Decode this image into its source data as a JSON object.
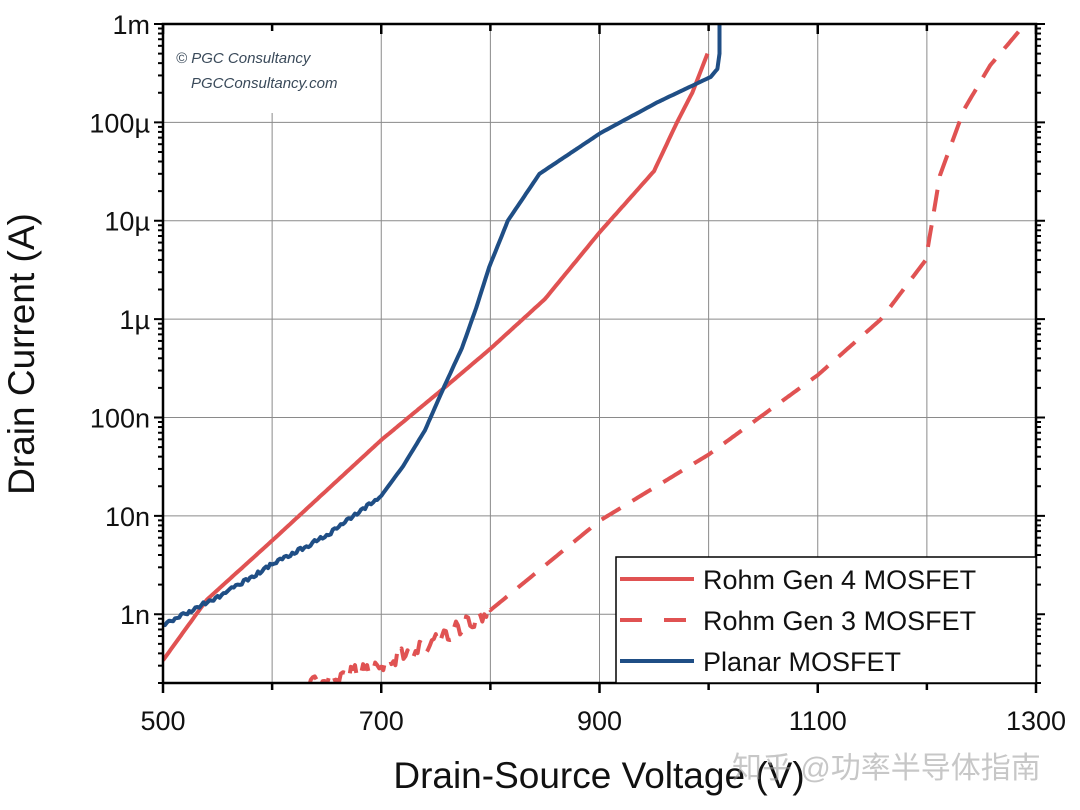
{
  "chart_data": {
    "type": "line",
    "xlabel": "Drain-Source Voltage (V)",
    "ylabel": "Drain Current (A)",
    "xlim": [
      500,
      1300
    ],
    "ylim": [
      2e-10,
      0.001
    ],
    "yscale": "log",
    "grid": true,
    "legend_position": "bottom-right",
    "x_ticks": [
      500,
      700,
      900,
      1100,
      1300
    ],
    "x_tick_labels": [
      "500",
      "700",
      "900",
      "1100",
      "1300"
    ],
    "y_ticks": [
      0.001,
      0.0001,
      1e-05,
      1e-06,
      1e-07,
      1e-08,
      1e-09
    ],
    "y_tick_labels": [
      "1m",
      "100µ",
      "10µ",
      "1µ",
      "100n",
      "10n",
      "1n"
    ],
    "series": [
      {
        "name": "Rohm Gen 4 MOSFET",
        "color": "#e05252",
        "style": "solid",
        "points": [
          [
            500,
            3.4e-10
          ],
          [
            540,
            1.4e-09
          ],
          [
            600,
            5.6e-09
          ],
          [
            700,
            5.9e-08
          ],
          [
            760,
            2.1e-07
          ],
          [
            800,
            5e-07
          ],
          [
            850,
            1.6e-06
          ],
          [
            900,
            7.6e-06
          ],
          [
            950,
            3.2e-05
          ],
          [
            971,
            0.0001
          ],
          [
            985,
            0.0002
          ],
          [
            999,
            0.0005
          ]
        ]
      },
      {
        "name": "Rohm Gen 3 MOSFET",
        "color": "#e05252",
        "style": "dashed",
        "points": [
          [
            630,
            2e-10
          ],
          [
            650,
            2.2e-10
          ],
          [
            700,
            3e-10
          ],
          [
            750,
            5.4e-10
          ],
          [
            800,
            1.1e-09
          ],
          [
            900,
            8.9e-09
          ],
          [
            1000,
            4.2e-08
          ],
          [
            1100,
            2.7e-07
          ],
          [
            1158,
            1e-06
          ],
          [
            1199,
            4e-06
          ],
          [
            1212,
            2.9e-05
          ],
          [
            1234,
            0.000135
          ],
          [
            1258,
            0.00038
          ],
          [
            1290,
            0.001
          ]
        ]
      },
      {
        "name": "Planar MOSFET",
        "color": "#1f4e85",
        "style": "solid",
        "points": [
          [
            500,
            7.8e-10
          ],
          [
            550,
            1.5e-09
          ],
          [
            600,
            3.2e-09
          ],
          [
            650,
            6.3e-09
          ],
          [
            700,
            1.6e-08
          ],
          [
            720,
            3.2e-08
          ],
          [
            740,
            7.4e-08
          ],
          [
            758,
            2.1e-07
          ],
          [
            774,
            5.1e-07
          ],
          [
            787,
            1.3e-06
          ],
          [
            799,
            3.4e-06
          ],
          [
            816,
            1e-05
          ],
          [
            845,
            3e-05
          ],
          [
            901,
            7.8e-05
          ],
          [
            953,
            0.00016
          ],
          [
            1002,
            0.00029
          ],
          [
            1008,
            0.00035
          ],
          [
            1010,
            0.0005
          ],
          [
            1010,
            0.001
          ]
        ]
      }
    ]
  },
  "watermark": {
    "copyright": "© PGC Consultancy",
    "url": "PGCConsultancy.com",
    "platform": "知乎 @功率半导体指南"
  }
}
